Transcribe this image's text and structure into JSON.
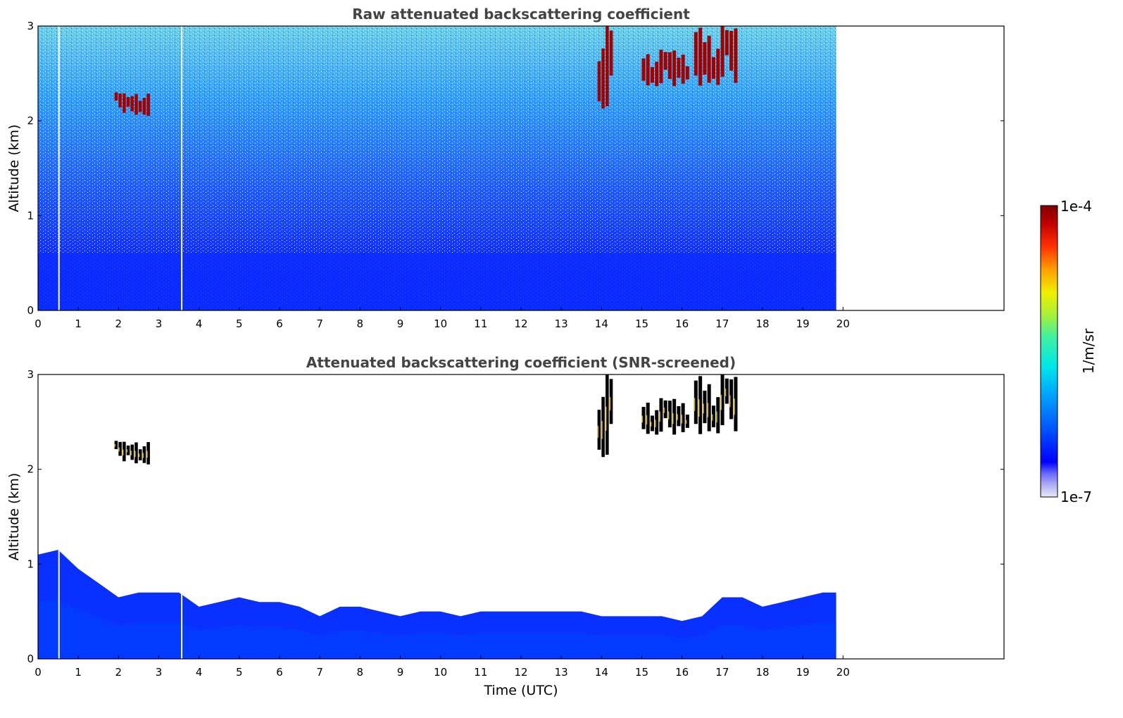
{
  "chart_data": [
    {
      "type": "heatmap",
      "title": "Raw attenuated backscattering coefficient",
      "xlabel": "",
      "ylabel": "Altitude (km)",
      "xlim": [
        0,
        24
      ],
      "ylim": [
        0,
        3
      ],
      "x_ticks": [
        "0",
        "1",
        "2",
        "3",
        "4",
        "5",
        "6",
        "7",
        "8",
        "9",
        "10",
        "11",
        "12",
        "13",
        "14",
        "15",
        "16",
        "17",
        "18",
        "19",
        "20"
      ],
      "y_ticks": [
        "0",
        "1",
        "2",
        "3"
      ],
      "data_extent_time_utc": [
        0,
        19.83
      ],
      "gaps_time_utc": [
        0.52,
        3.57
      ],
      "colorbar": {
        "min": "1e-7",
        "max": "1e-4",
        "scale": "log",
        "label": "1/m/sr",
        "colormap": "jet"
      },
      "features": [
        {
          "kind": "boundary_layer",
          "time_utc": [
            0,
            19.83
          ],
          "altitude_km": [
            0,
            0.6
          ]
        },
        {
          "kind": "cloud",
          "time_utc": [
            1.9,
            2.8
          ],
          "altitude_km": [
            2.05,
            2.3
          ]
        },
        {
          "kind": "cloud",
          "time_utc": [
            13.9,
            14.3
          ],
          "altitude_km": [
            2.1,
            3.0
          ]
        },
        {
          "kind": "cloud",
          "time_utc": [
            15.0,
            16.2
          ],
          "altitude_km": [
            2.35,
            2.75
          ]
        },
        {
          "kind": "cloud",
          "time_utc": [
            16.3,
            17.4
          ],
          "altitude_km": [
            2.35,
            3.0
          ]
        }
      ]
    },
    {
      "type": "heatmap",
      "title": "Attenuated backscattering coefficient (SNR-screened)",
      "xlabel": "Time (UTC)",
      "ylabel": "Altitude (km)",
      "xlim": [
        0,
        24
      ],
      "ylim": [
        0,
        3
      ],
      "x_ticks": [
        "0",
        "1",
        "2",
        "3",
        "4",
        "5",
        "6",
        "7",
        "8",
        "9",
        "10",
        "11",
        "12",
        "13",
        "14",
        "15",
        "16",
        "17",
        "18",
        "19",
        "20"
      ],
      "y_ticks": [
        "0",
        "1",
        "2",
        "3"
      ],
      "data_extent_time_utc": [
        0,
        19.83
      ],
      "gaps_time_utc": [
        0.52,
        3.57
      ],
      "colorbar": {
        "min": "1e-7",
        "max": "1e-4",
        "scale": "log",
        "label": "1/m/sr",
        "colormap": "jet"
      },
      "boundary_layer_top": {
        "time_utc": [
          0,
          0.5,
          1.0,
          1.5,
          2.0,
          2.5,
          3.0,
          3.5,
          4.0,
          4.5,
          5.0,
          5.5,
          6.0,
          6.5,
          7.0,
          7.5,
          8.0,
          8.5,
          9.0,
          9.5,
          10.0,
          10.5,
          11.0,
          11.5,
          12.0,
          12.5,
          13.0,
          13.5,
          14.0,
          14.5,
          15.0,
          15.5,
          16.0,
          16.5,
          17.0,
          17.5,
          18.0,
          18.5,
          19.0,
          19.5,
          19.83
        ],
        "altitude_km": [
          1.1,
          1.15,
          0.95,
          0.8,
          0.65,
          0.7,
          0.7,
          0.7,
          0.55,
          0.6,
          0.65,
          0.6,
          0.6,
          0.55,
          0.45,
          0.55,
          0.55,
          0.5,
          0.45,
          0.5,
          0.5,
          0.45,
          0.5,
          0.5,
          0.5,
          0.5,
          0.5,
          0.5,
          0.45,
          0.45,
          0.45,
          0.45,
          0.4,
          0.45,
          0.65,
          0.65,
          0.55,
          0.6,
          0.65,
          0.7,
          0.7
        ]
      },
      "features": [
        {
          "kind": "cloud",
          "time_utc": [
            1.9,
            2.8
          ],
          "altitude_km": [
            2.05,
            2.3
          ]
        },
        {
          "kind": "cloud",
          "time_utc": [
            13.9,
            14.3
          ],
          "altitude_km": [
            2.1,
            3.0
          ]
        },
        {
          "kind": "cloud",
          "time_utc": [
            15.0,
            16.2
          ],
          "altitude_km": [
            2.35,
            2.75
          ]
        },
        {
          "kind": "cloud",
          "time_utc": [
            16.3,
            17.4
          ],
          "altitude_km": [
            2.35,
            3.0
          ]
        }
      ]
    }
  ],
  "colorbar": {
    "max_label": "1e-4",
    "min_label": "1e-7",
    "unit_label": "1/m/sr",
    "colors": [
      "#e8e8f8",
      "#b0b0f0",
      "#6a6aff",
      "#0000ff",
      "#0060ff",
      "#00b0ff",
      "#00e8e8",
      "#40f0a0",
      "#a0f040",
      "#f0f000",
      "#ffa000",
      "#ff3000",
      "#c00000",
      "#800000"
    ]
  }
}
